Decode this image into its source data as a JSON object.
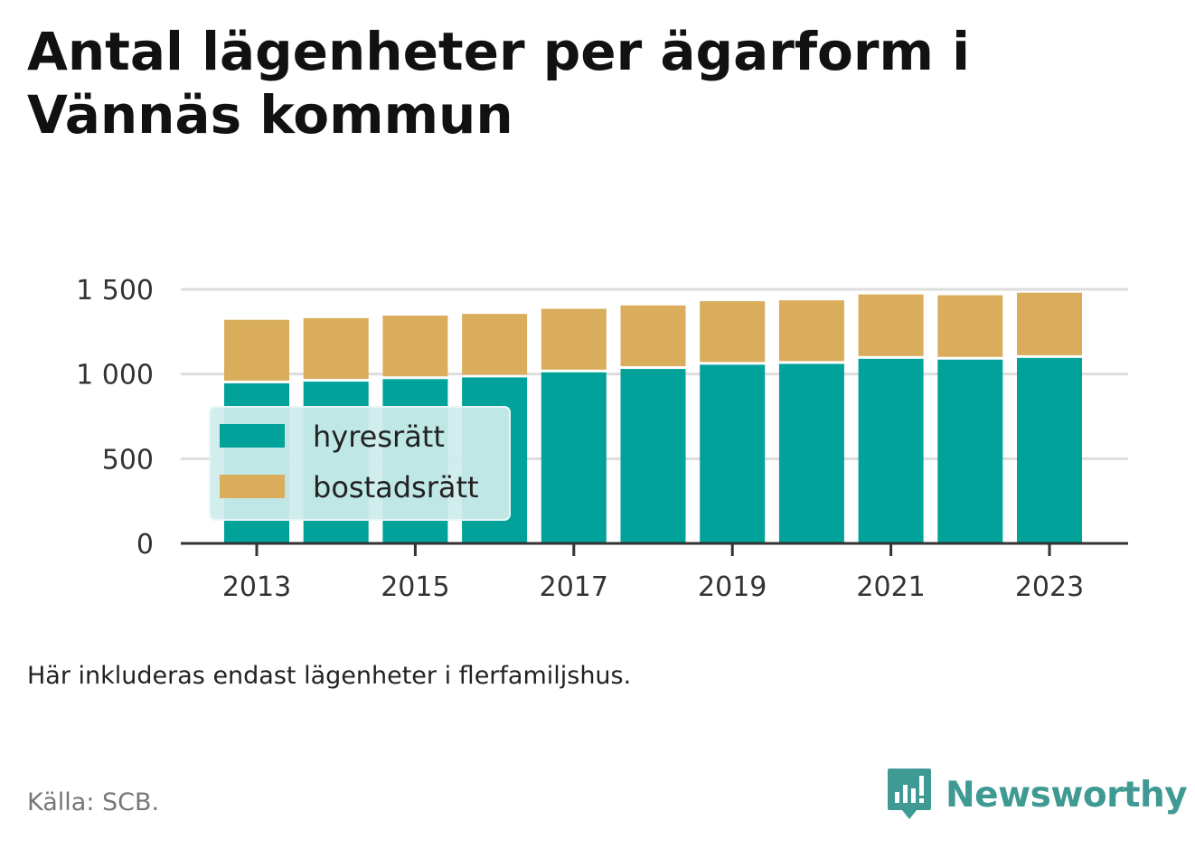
{
  "title": "Antal lägenheter per ägarform i Vännäs kommun",
  "note": "Här inkluderas endast lägenheter i flerfamiljshus.",
  "source": "Källa: SCB.",
  "brand": {
    "name": "Newsworthy",
    "icon": "newsworthy-logo-icon",
    "color": "#3f9a93"
  },
  "chart_data": {
    "type": "bar",
    "stacked": true,
    "categories": [
      2013,
      2014,
      2015,
      2016,
      2017,
      2018,
      2019,
      2020,
      2021,
      2022,
      2023
    ],
    "x_tick_labels": [
      "2013",
      "2015",
      "2017",
      "2019",
      "2021",
      "2023"
    ],
    "y_tick_values": [
      0,
      500,
      1000,
      1500
    ],
    "y_tick_labels": [
      "0",
      "500",
      "1 000",
      "1 500"
    ],
    "ylim": [
      0,
      1500
    ],
    "grid": true,
    "legend_position": "left",
    "series": [
      {
        "name": "hyresrätt",
        "color": "#00a29a",
        "values": [
          945,
          955,
          970,
          980,
          1010,
          1030,
          1055,
          1060,
          1090,
          1085,
          1095
        ]
      },
      {
        "name": "bostadsrätt",
        "color": "#d9ad5c",
        "values": [
          375,
          375,
          375,
          375,
          375,
          375,
          375,
          375,
          380,
          380,
          385
        ]
      }
    ]
  }
}
